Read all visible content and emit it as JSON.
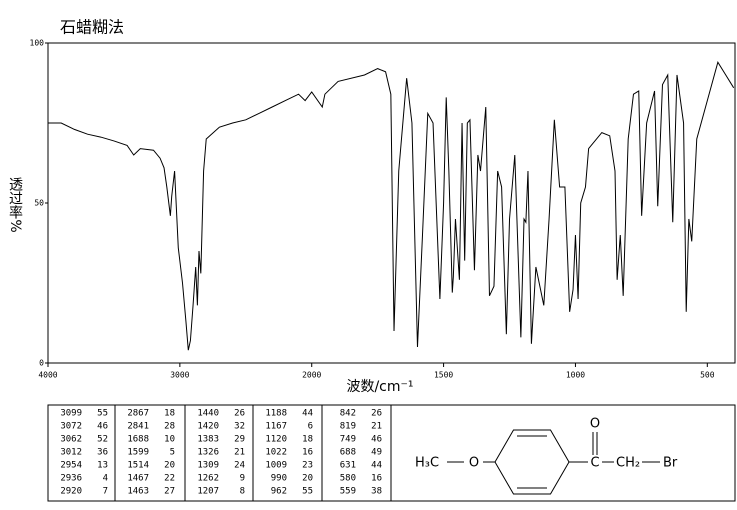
{
  "chart_data": {
    "type": "line",
    "title": "石蜡糊法",
    "x_label": "波数/cm⁻¹",
    "y_label": "透过率%",
    "xscale": "piecewise",
    "color": "#000000",
    "xlim": [
      4000,
      395
    ],
    "xticks": [
      4000,
      3000,
      2000,
      1500,
      1000,
      500
    ],
    "ylim": [
      0,
      100
    ],
    "yticks": [
      0,
      50,
      100
    ],
    "x": [
      4000,
      3900,
      3800,
      3700,
      3600,
      3500,
      3400,
      3350,
      3300,
      3200,
      3150,
      3120,
      3099,
      3072,
      3062,
      3040,
      3012,
      2980,
      2954,
      2936,
      2920,
      2900,
      2880,
      2867,
      2855,
      2841,
      2820,
      2800,
      2700,
      2600,
      2500,
      2400,
      2300,
      2200,
      2100,
      2050,
      2000,
      1960,
      1950,
      1900,
      1800,
      1750,
      1720,
      1700,
      1688,
      1670,
      1640,
      1620,
      1599,
      1580,
      1560,
      1540,
      1514,
      1500,
      1490,
      1480,
      1467,
      1463,
      1455,
      1440,
      1430,
      1420,
      1410,
      1400,
      1383,
      1370,
      1360,
      1340,
      1326,
      1309,
      1295,
      1280,
      1262,
      1250,
      1230,
      1207,
      1195,
      1188,
      1180,
      1167,
      1150,
      1120,
      1100,
      1080,
      1060,
      1040,
      1022,
      1009,
      1000,
      990,
      980,
      962,
      950,
      900,
      870,
      850,
      842,
      830,
      819,
      800,
      780,
      760,
      749,
      730,
      700,
      688,
      670,
      650,
      631,
      615,
      590,
      580,
      570,
      559,
      540,
      500,
      460,
      430,
      400
    ],
    "values": [
      75,
      75,
      73,
      71.5,
      70.6,
      69.4,
      68,
      65,
      67,
      66.5,
      64,
      61,
      55,
      46,
      52,
      60,
      36,
      25,
      13,
      4,
      7,
      18,
      30,
      18,
      35,
      28,
      60,
      70,
      73.7,
      75,
      76,
      78,
      80,
      82,
      84,
      82,
      84.7,
      80,
      84,
      88,
      90,
      92,
      91,
      84,
      10,
      60,
      89,
      75,
      5,
      40,
      78,
      75,
      20,
      50,
      83,
      60,
      22,
      27,
      45,
      26,
      75,
      32,
      75,
      76,
      29,
      65,
      60,
      80,
      21,
      24,
      60,
      55,
      9,
      45,
      65,
      8,
      45,
      44,
      60,
      6,
      30,
      18,
      45,
      76,
      55,
      55,
      16,
      23,
      40,
      20,
      50,
      55,
      67,
      72,
      71,
      60,
      26,
      40,
      21,
      70,
      84,
      85,
      46,
      75,
      85,
      49,
      87,
      90,
      44,
      90,
      75,
      16,
      45,
      38,
      70,
      82,
      94,
      90,
      86
    ]
  },
  "peak_table": [
    [
      [
        3099,
        55
      ],
      [
        3072,
        46
      ],
      [
        3062,
        52
      ],
      [
        3012,
        36
      ],
      [
        2954,
        13
      ],
      [
        2936,
        4
      ],
      [
        2920,
        7
      ]
    ],
    [
      [
        2867,
        18
      ],
      [
        2841,
        28
      ],
      [
        1688,
        10
      ],
      [
        1599,
        5
      ],
      [
        1514,
        20
      ],
      [
        1467,
        22
      ],
      [
        1463,
        27
      ]
    ],
    [
      [
        1440,
        26
      ],
      [
        1420,
        32
      ],
      [
        1383,
        29
      ],
      [
        1326,
        21
      ],
      [
        1309,
        24
      ],
      [
        1262,
        9
      ],
      [
        1207,
        8
      ]
    ],
    [
      [
        1188,
        44
      ],
      [
        1167,
        6
      ],
      [
        1120,
        18
      ],
      [
        1022,
        16
      ],
      [
        1009,
        23
      ],
      [
        990,
        20
      ],
      [
        962,
        55
      ]
    ],
    [
      [
        842,
        26
      ],
      [
        819,
        21
      ],
      [
        749,
        46
      ],
      [
        688,
        49
      ],
      [
        631,
        44
      ],
      [
        580,
        16
      ],
      [
        559,
        38
      ]
    ]
  ],
  "structure": {
    "methyl": "H₃C",
    "ether_o": "O",
    "carbonyl_o": "O",
    "carbonyl_c": "C",
    "methylene": "CH₂",
    "halogen": "Br"
  }
}
